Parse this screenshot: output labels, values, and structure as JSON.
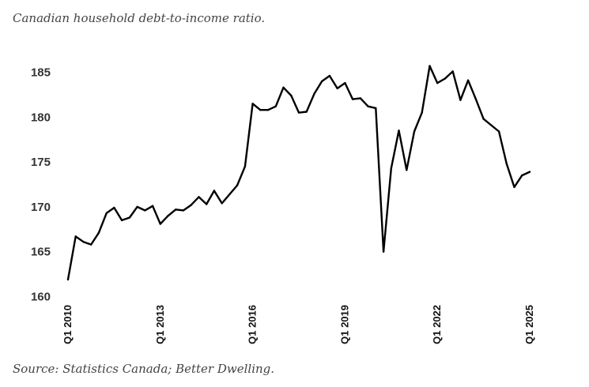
{
  "title": "Canadian household debt-to-income ratio.",
  "source": "Source: Statistics Canada; Better Dwelling.",
  "chart_data": {
    "type": "line",
    "title": "Canadian household debt-to-income ratio.",
    "xlabel": "",
    "ylabel": "",
    "ylim": [
      160,
      185
    ],
    "yticks": [
      160,
      165,
      170,
      175,
      180,
      185
    ],
    "xtick_labels": [
      "Q1 2010",
      "Q1 2013",
      "Q1 2016",
      "Q1 2019",
      "Q1 2022",
      "Q1 2025"
    ],
    "grid": false,
    "legend": "none",
    "line_color": "#000000",
    "x": [
      "Q1 2010",
      "Q2 2010",
      "Q3 2010",
      "Q4 2010",
      "Q1 2011",
      "Q2 2011",
      "Q3 2011",
      "Q4 2011",
      "Q1 2012",
      "Q2 2012",
      "Q3 2012",
      "Q4 2012",
      "Q1 2013",
      "Q2 2013",
      "Q3 2013",
      "Q4 2013",
      "Q1 2014",
      "Q2 2014",
      "Q3 2014",
      "Q4 2014",
      "Q1 2015",
      "Q2 2015",
      "Q3 2015",
      "Q4 2015",
      "Q1 2016",
      "Q2 2016",
      "Q3 2016",
      "Q4 2016",
      "Q1 2017",
      "Q2 2017",
      "Q3 2017",
      "Q4 2017",
      "Q1 2018",
      "Q2 2018",
      "Q3 2018",
      "Q4 2018",
      "Q1 2019",
      "Q2 2019",
      "Q3 2019",
      "Q4 2019",
      "Q1 2020",
      "Q2 2020",
      "Q3 2020",
      "Q4 2020",
      "Q1 2021",
      "Q2 2021",
      "Q3 2021",
      "Q4 2021",
      "Q1 2022",
      "Q2 2022",
      "Q3 2022",
      "Q4 2022",
      "Q1 2023",
      "Q2 2023",
      "Q3 2023",
      "Q4 2023",
      "Q1 2024",
      "Q2 2024",
      "Q3 2024",
      "Q4 2024",
      "Q1 2025"
    ],
    "series": [
      {
        "values": [
          161.9,
          166.7,
          166.1,
          165.8,
          167.1,
          169.3,
          169.9,
          168.5,
          168.8,
          170.0,
          169.6,
          170.1,
          168.1,
          169.0,
          169.7,
          169.6,
          170.2,
          171.1,
          170.3,
          171.8,
          170.4,
          171.4,
          172.4,
          174.5,
          181.5,
          180.8,
          180.8,
          181.2,
          183.3,
          182.4,
          180.5,
          180.6,
          182.6,
          184.0,
          184.6,
          183.2,
          183.8,
          182.0,
          182.1,
          181.2,
          181.0,
          165.0,
          174.3,
          178.5,
          174.1,
          178.4,
          180.5,
          185.7,
          183.8,
          184.3,
          185.1,
          181.9,
          184.1,
          182.0,
          179.8,
          179.1,
          178.4,
          174.8,
          172.2,
          173.5,
          173.9
        ]
      }
    ]
  }
}
